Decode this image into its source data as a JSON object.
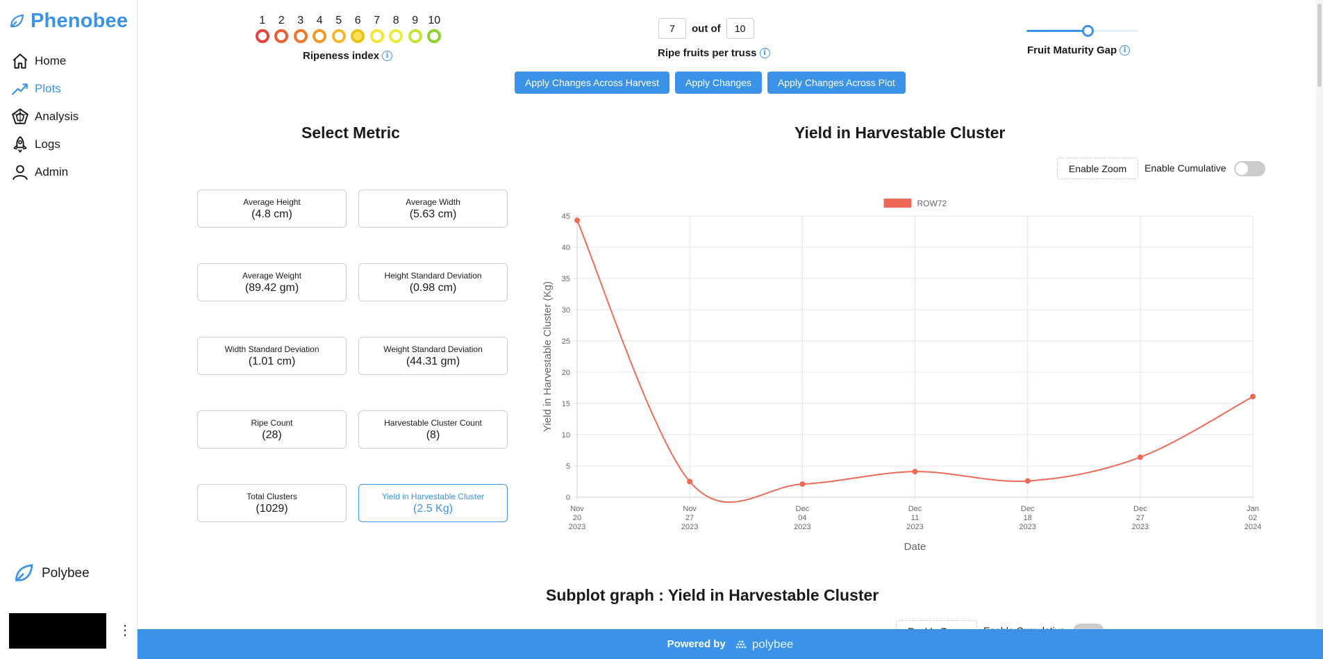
{
  "brand": {
    "name": "Phenobee"
  },
  "sidebar": {
    "items": [
      {
        "label": "Home",
        "icon": "home-icon",
        "active": false
      },
      {
        "label": "Plots",
        "icon": "chart-line-icon",
        "active": true
      },
      {
        "label": "Analysis",
        "icon": "analysis-icon",
        "active": false
      },
      {
        "label": "Logs",
        "icon": "rocket-icon",
        "active": false
      },
      {
        "label": "Admin",
        "icon": "user-icon",
        "active": false
      }
    ],
    "bottom_label": "Polybee",
    "menu_glyph": "⋮"
  },
  "ripeness": {
    "label": "Ripeness index",
    "levels": [
      {
        "n": "1",
        "color": "#e8403a"
      },
      {
        "n": "2",
        "color": "#ea5f31"
      },
      {
        "n": "3",
        "color": "#ed7a2c"
      },
      {
        "n": "4",
        "color": "#f09a2a"
      },
      {
        "n": "5",
        "color": "#f3b82a"
      },
      {
        "n": "6",
        "color": "#efc218",
        "selected": true
      },
      {
        "n": "7",
        "color": "#f4e43c"
      },
      {
        "n": "8",
        "color": "#e9ec3a"
      },
      {
        "n": "9",
        "color": "#c6e336"
      },
      {
        "n": "10",
        "color": "#8fd22e"
      }
    ]
  },
  "ratio": {
    "value": "7",
    "sep": "out of",
    "total": "10",
    "label": "Ripe fruits per truss"
  },
  "maturity": {
    "label": "Fruit Maturity Gap",
    "fraction": 0.55
  },
  "buttons": {
    "harvest": "Apply Changes Across Harvest",
    "apply": "Apply Changes",
    "plot": "Apply Changes Across Plot"
  },
  "metrics": {
    "title": "Select Metric",
    "cards": [
      {
        "name": "Average Height",
        "value": "(4.8 cm)"
      },
      {
        "name": "Average Width",
        "value": "(5.63 cm)"
      },
      {
        "name": "Average Weight",
        "value": "(89.42 gm)"
      },
      {
        "name": "Height Standard Deviation",
        "value": "(0.98 cm)"
      },
      {
        "name": "Width Standard Deviation",
        "value": "(1.01 cm)"
      },
      {
        "name": "Weight Standard Deviation",
        "value": "(44.31 gm)"
      },
      {
        "name": "Ripe Count",
        "value": "(28)"
      },
      {
        "name": "Harvestable Cluster Count",
        "value": "(8)"
      },
      {
        "name": "Total Clusters",
        "value": "(1029)"
      },
      {
        "name": "Yield in Harvestable Cluster",
        "value": "(2.5 Kg)",
        "selected": true
      }
    ]
  },
  "chart": {
    "title": "Yield in Harvestable Cluster",
    "zoom_label": "Enable Zoom",
    "cumulative_label": "Enable Cumulative"
  },
  "chart_data": {
    "type": "line",
    "series": [
      {
        "name": "ROW72",
        "color": "#ef6a55",
        "values": [
          44.3,
          2.5,
          2.1,
          4.1,
          2.6,
          6.4,
          16.1
        ]
      }
    ],
    "x": [
      [
        "Nov",
        "20",
        "2023"
      ],
      [
        "Nov",
        "27",
        "2023"
      ],
      [
        "Dec",
        "04",
        "2023"
      ],
      [
        "Dec",
        "11",
        "2023"
      ],
      [
        "Dec",
        "18",
        "2023"
      ],
      [
        "Dec",
        "27",
        "2023"
      ],
      [
        "Jan",
        "02",
        "2024"
      ]
    ],
    "xlabel": "Date",
    "ylabel": "Yield in Harvestable Cluster (Kg)",
    "ylim": [
      0,
      45
    ],
    "yticks": [
      0,
      5,
      10,
      15,
      20,
      25,
      30,
      35,
      40,
      45
    ],
    "grid": true,
    "legend": "top-center"
  },
  "subplot": {
    "title": "Subplot graph : Yield in Harvestable Cluster",
    "zoom_label": "Enable Zoom",
    "cumulative_label": "Enable Cumulative"
  },
  "footer": {
    "label": "Powered by",
    "brand": "polybee"
  }
}
